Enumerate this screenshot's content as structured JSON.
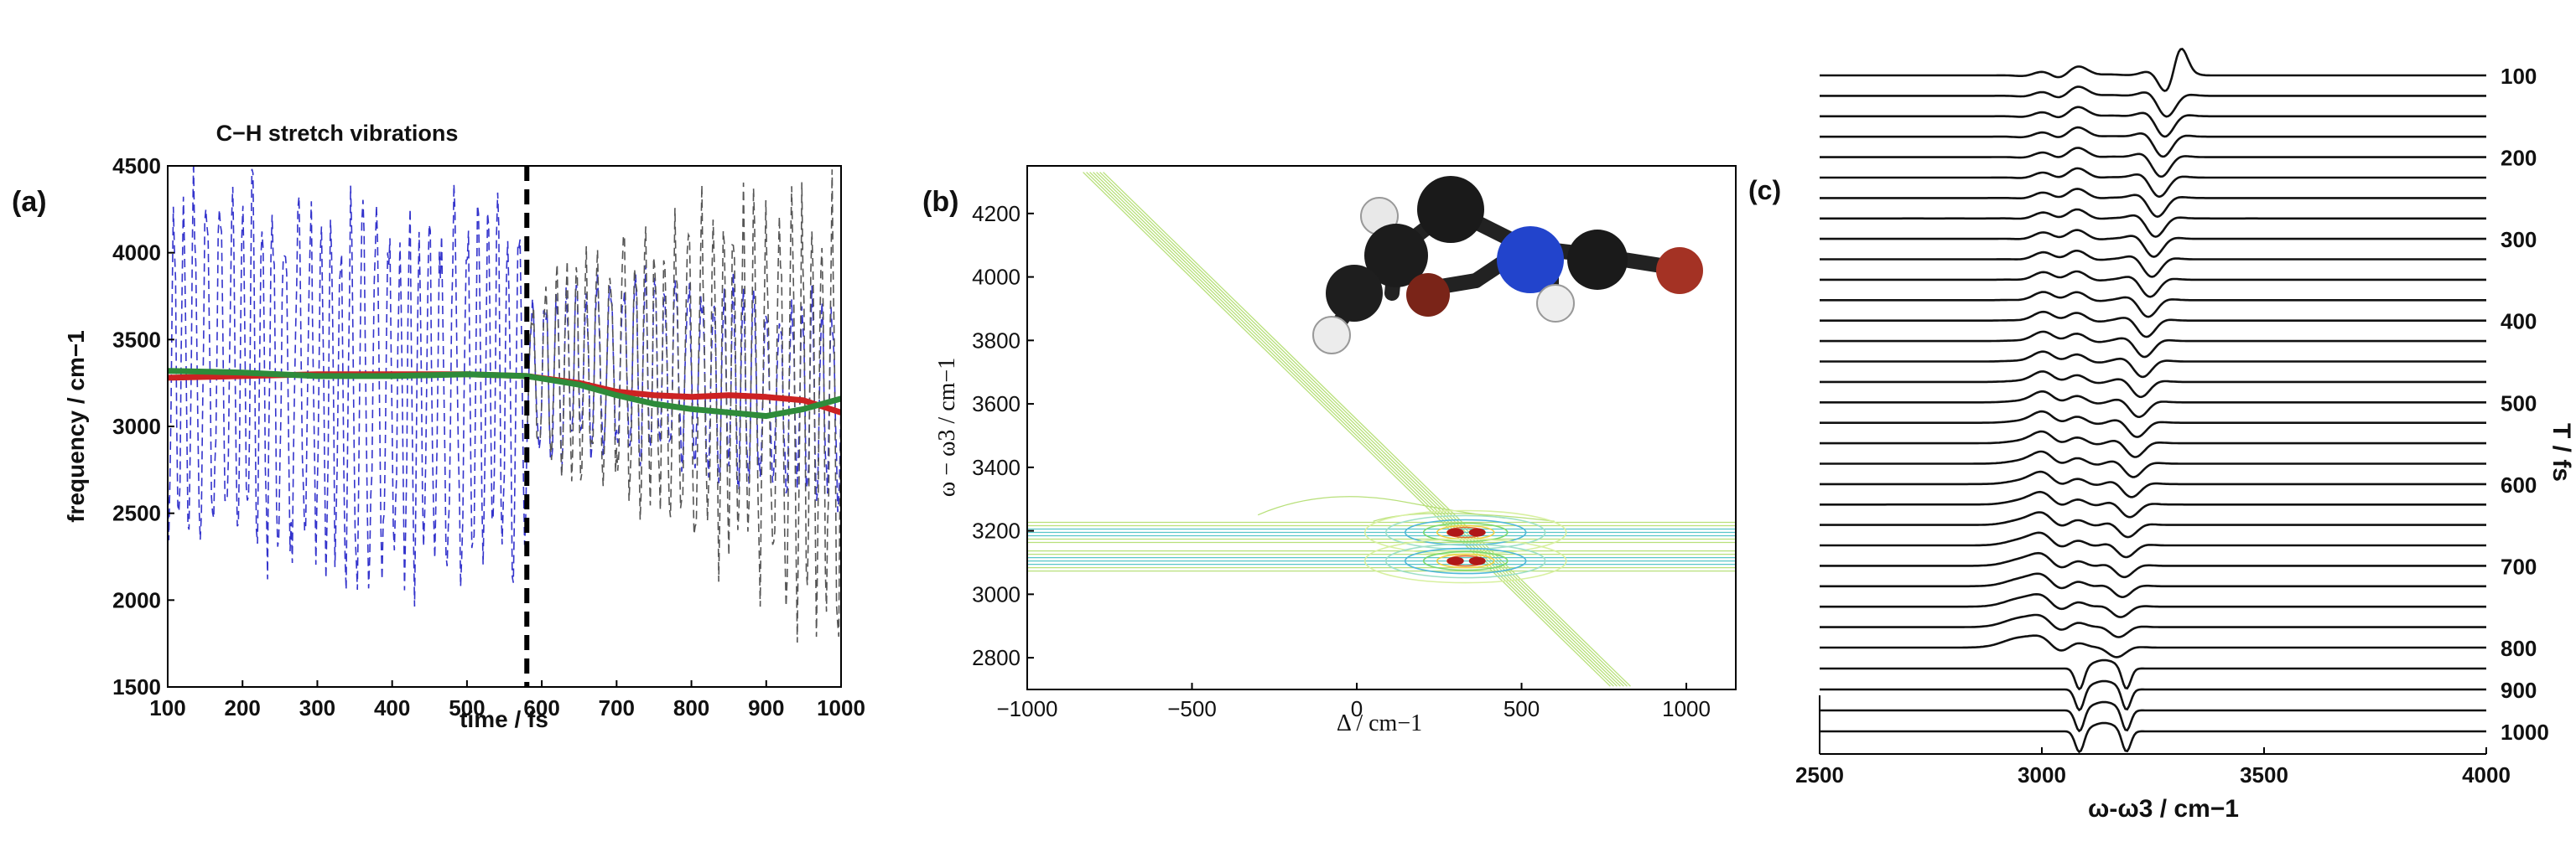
{
  "chart_data": [
    {
      "panel": "(a)",
      "type": "line",
      "title": "C−H stretch vibrations",
      "xlabel": "time / fs",
      "ylabel": "frequency / cm−1",
      "xlim": [
        100,
        1000
      ],
      "ylim": [
        1500,
        4500
      ],
      "xticks": [
        "100",
        "200",
        "300",
        "400",
        "500",
        "600",
        "700",
        "800",
        "900",
        "1000"
      ],
      "yticks": [
        "1500",
        "2000",
        "2500",
        "3000",
        "3500",
        "4000",
        "4500"
      ],
      "grid": false,
      "marker_line_x": 580,
      "series": [
        {
          "color": "#3333cc",
          "style": "dashed",
          "x": [
            100,
            150,
            200,
            250,
            300,
            350,
            400,
            450,
            500,
            550,
            580
          ],
          "y": [
            3300,
            3320,
            3280,
            3290,
            3270,
            3300,
            3310,
            3290,
            3300,
            3310,
            3300
          ]
        },
        {
          "color": "#555555",
          "style": "dashed",
          "x": [
            580,
            650,
            700,
            750,
            800,
            850,
            900,
            950,
            1000
          ],
          "y": [
            3300,
            3280,
            3250,
            3220,
            3200,
            3180,
            3150,
            3130,
            3120
          ]
        },
        {
          "color": "#cc2222",
          "style": "solid",
          "x": [
            100,
            200,
            300,
            400,
            500,
            580,
            650,
            700,
            750,
            800,
            850,
            900,
            950,
            1000
          ],
          "y": [
            3280,
            3290,
            3300,
            3300,
            3300,
            3290,
            3250,
            3200,
            3180,
            3170,
            3180,
            3170,
            3150,
            3080
          ]
        },
        {
          "color": "#2e8b3a",
          "style": "solid",
          "x": [
            100,
            200,
            300,
            400,
            500,
            580,
            650,
            700,
            750,
            800,
            850,
            900,
            950,
            1000
          ],
          "y": [
            3320,
            3310,
            3290,
            3290,
            3300,
            3290,
            3240,
            3180,
            3130,
            3100,
            3080,
            3060,
            3100,
            3160
          ]
        }
      ]
    },
    {
      "panel": "(b)",
      "type": "heatmap",
      "xlabel": "Δ / cm−1",
      "ylabel": "ω − ω3 / cm−1",
      "xlim": [
        -1000,
        1150
      ],
      "ylim": [
        2700,
        4350
      ],
      "xticks": [
        "−1000",
        "−500",
        "0",
        "500",
        "1000"
      ],
      "yticks": [
        "2800",
        "3000",
        "3200",
        "3400",
        "3600",
        "3800",
        "4000",
        "4200"
      ],
      "peaks": [
        {
          "x": 330,
          "y": 3195,
          "color": "#b01818"
        },
        {
          "x": 330,
          "y": 3105,
          "color": "#b01818"
        }
      ],
      "diagonal": {
        "from": [
          -800,
          4330
        ],
        "to": [
          800,
          2710
        ]
      },
      "horizontal_bands": [
        3195,
        3105
      ]
    },
    {
      "panel": "(c)",
      "type": "line",
      "xlabel": "ω-ω3 / cm−1",
      "ylabel": "T / fs",
      "xlim": [
        2500,
        4000
      ],
      "xticks": [
        "2500",
        "3000",
        "3500",
        "4000"
      ],
      "right_labels": [
        "100",
        "200",
        "300",
        "400",
        "500",
        "600",
        "700",
        "800",
        "900",
        "1000"
      ],
      "trace_T_fs": [
        100,
        125,
        150,
        175,
        200,
        225,
        250,
        275,
        300,
        325,
        350,
        375,
        400,
        425,
        450,
        475,
        500,
        525,
        550,
        575,
        600,
        625,
        650,
        675,
        700,
        725,
        750,
        775,
        800,
        850,
        900,
        950,
        1000
      ]
    }
  ],
  "colors": {
    "blue_series": "#3333cc",
    "grey_series": "#555555",
    "red_series": "#cc2222",
    "green_series": "#2e8b3a",
    "peak": "#b01818"
  },
  "icons": {
    "molecule": "molecule-ball-and-stick-icon"
  }
}
